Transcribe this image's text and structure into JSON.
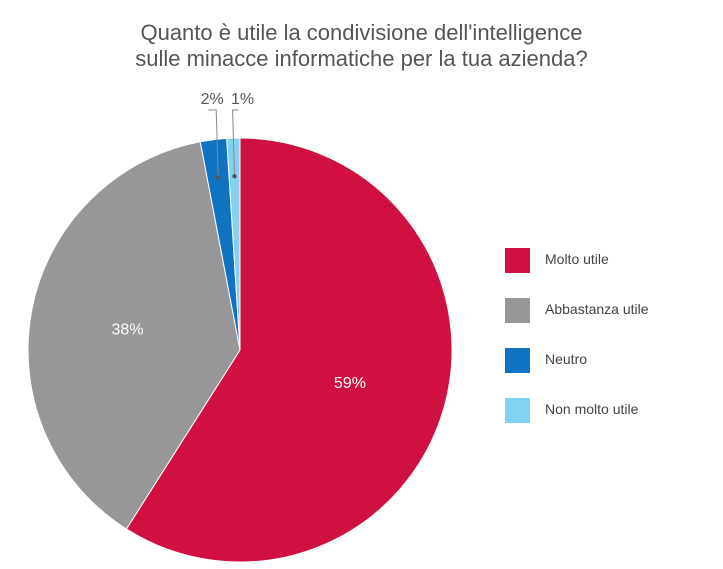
{
  "title_line1": "Quanto è utile la condivisione dell'intelligence",
  "title_line2": "sulle minacce informatiche per la tua azienda?",
  "chart_data": {
    "type": "pie",
    "title": "Quanto è utile la condivisione dell'intelligence sulle minacce informatiche per la tua azienda?",
    "legend_position": "right",
    "slices": [
      {
        "label": "Molto utile",
        "value": 59,
        "display": "59%",
        "color": "#d01040"
      },
      {
        "label": "Abbastanza utile",
        "value": 38,
        "display": "38%",
        "color": "#97979a"
      },
      {
        "label": "Neutro",
        "value": 2,
        "display": "2%",
        "color": "#0f73c2"
      },
      {
        "label": "Non molto utile",
        "value": 1,
        "display": "1%",
        "color": "#82d2f2"
      }
    ]
  }
}
